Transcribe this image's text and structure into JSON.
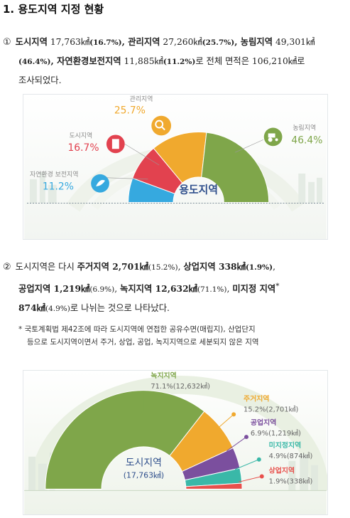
{
  "heading": "1. 용도지역 지정 현황",
  "para1": {
    "marker": "①",
    "urban_label": "도시지역",
    "urban_area": " 17,763㎢",
    "urban_pct": "(16.7%)",
    "sep1": ", ",
    "mgmt_label": "관리지역",
    "mgmt_area": " 27,260㎢",
    "mgmt_pct": "(25.7%)",
    "sep2": ", ",
    "agri_label": "농림지역",
    "agri_area": " 49,301㎢",
    "agri_pct": "(46.4%)",
    "sep3": ", ",
    "nature_label": "자연환경보전지역",
    "nature_area": " 11,885㎢",
    "nature_pct": "(11.2%)",
    "tail": "로 전체 면적은 106,210㎢로",
    "tail2": "조사되었다."
  },
  "para2": {
    "marker": "②",
    "lead": "도시지역은 다시 ",
    "res_label": "주거지역 2,701㎢",
    "res_pct": "(15.2%)",
    "sep1": ", ",
    "com_label": "상업지역 338㎢",
    "com_pct": "(1.9%)",
    "sep2": ",",
    "ind_label": "공업지역 1,219㎢",
    "ind_pct": "(6.9%)",
    "sep3": ", ",
    "green_label": "녹지지역 12,632㎢",
    "green_pct": "(71.1%)",
    "sep4": ", ",
    "undes_label": "미지정 지역",
    "star": "*",
    "undes_area": "874㎢",
    "undes_pct": "(4.9%)",
    "tail": "로 나뉘는 것으로 나타났다."
  },
  "note": {
    "line1": "* 국토계획법 제42조에 따라 도시지역에 연접한 공유수면(매립지), 산업단지",
    "line2": "등으로 도시지역이면서 주거, 상업, 공업, 녹지지역으로 세분되지 않은 지역"
  },
  "chart_data": [
    {
      "type": "pie",
      "center_label": "용도지역",
      "categories": [
        "관리지역",
        "농림지역",
        "도시지역",
        "자연환경 보전지역"
      ],
      "values": [
        25.7,
        46.4,
        16.7,
        11.2
      ],
      "labels": [
        "25.7%",
        "46.4%",
        "16.7%",
        "11.2%"
      ],
      "colors": [
        "#f0a92e",
        "#7fa64a",
        "#e2424f",
        "#36a9df"
      ],
      "icons": [
        "search-icon",
        "tractor-icon",
        "building-icon",
        "leaf-icon"
      ]
    },
    {
      "type": "pie",
      "center_label": "도시지역",
      "center_value": "(17,763㎢)",
      "categories": [
        "녹지지역",
        "주거지역",
        "공업지역",
        "미지정지역",
        "상업지역"
      ],
      "values": [
        71.1,
        15.2,
        6.9,
        4.9,
        1.9
      ],
      "labels": [
        "71.1%(12,632㎢)",
        "15.2%(2,701㎢)",
        "6.9%(1,219㎢)",
        "4.9%(874㎢)",
        "1.9%(338㎢)"
      ],
      "colors": [
        "#7fa64a",
        "#f0a92e",
        "#7b4f9e",
        "#3ab8a8",
        "#e8504c"
      ]
    }
  ]
}
